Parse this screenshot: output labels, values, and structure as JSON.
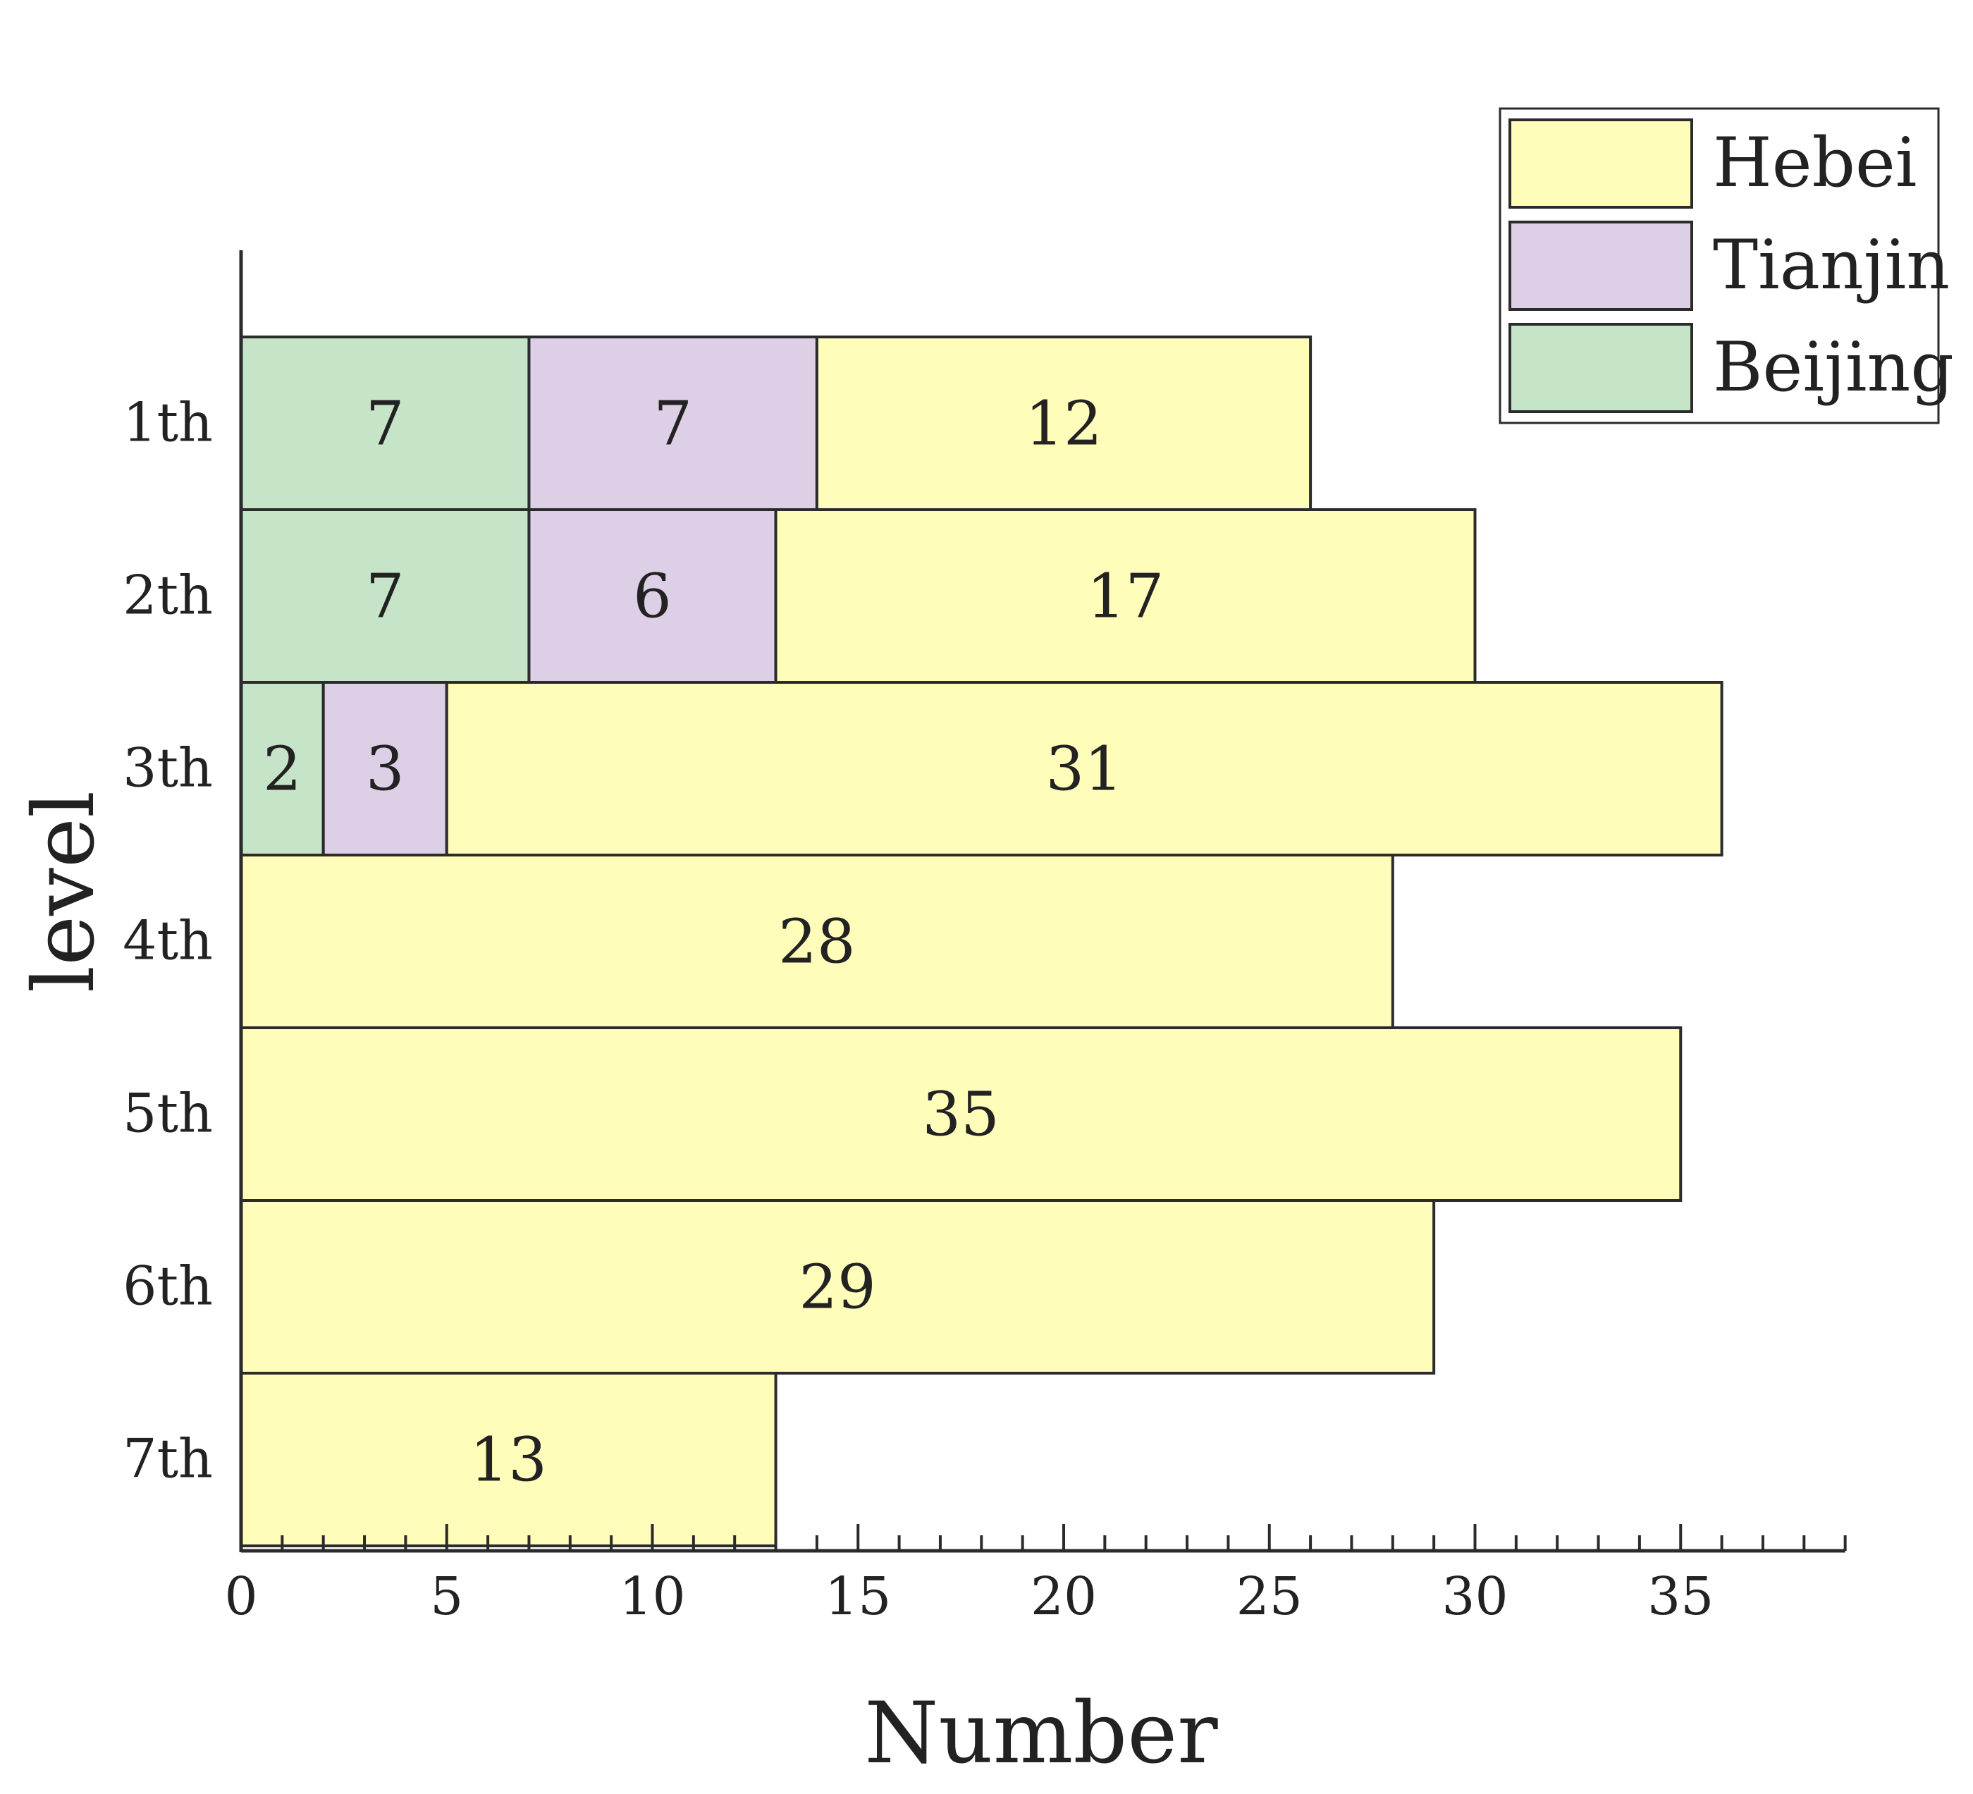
{
  "chart_data": {
    "type": "bar",
    "orientation": "horizontal",
    "stacked": true,
    "title": "",
    "xlabel": "Number",
    "ylabel": "level",
    "xlim": [
      0,
      39
    ],
    "xticks": [
      0,
      5,
      10,
      15,
      20,
      25,
      30,
      35
    ],
    "xtick_labels": [
      "0",
      "5",
      "10",
      "15",
      "20",
      "25",
      "30",
      "35"
    ],
    "minor_tick_step": 1,
    "grid": false,
    "legend_position": "top-right",
    "categories": [
      "1th",
      "2th",
      "3th",
      "4th",
      "5th",
      "6th",
      "7th"
    ],
    "series": [
      {
        "name": "Beijing",
        "color": "#c6e5c8",
        "values": [
          7,
          7,
          2,
          null,
          null,
          null,
          null
        ]
      },
      {
        "name": "Tianjin",
        "color": "#dccfe6",
        "values": [
          7,
          6,
          3,
          null,
          null,
          null,
          null
        ]
      },
      {
        "name": "Hebei",
        "color": "#fffdb9",
        "values": [
          12,
          17,
          31,
          28,
          35,
          29,
          13
        ]
      }
    ],
    "data_labels": [
      [
        "7",
        "7",
        "12"
      ],
      [
        "7",
        "6",
        "17"
      ],
      [
        "2",
        "3",
        "31"
      ],
      [
        "",
        "",
        "28"
      ],
      [
        "",
        "",
        "35"
      ],
      [
        "",
        "",
        "29"
      ],
      [
        "",
        "",
        "13"
      ]
    ],
    "legend_order": [
      "Hebei",
      "Tianjin",
      "Beijing"
    ],
    "colors": {
      "edge": "#2b2b2b",
      "text": "#222222"
    }
  }
}
